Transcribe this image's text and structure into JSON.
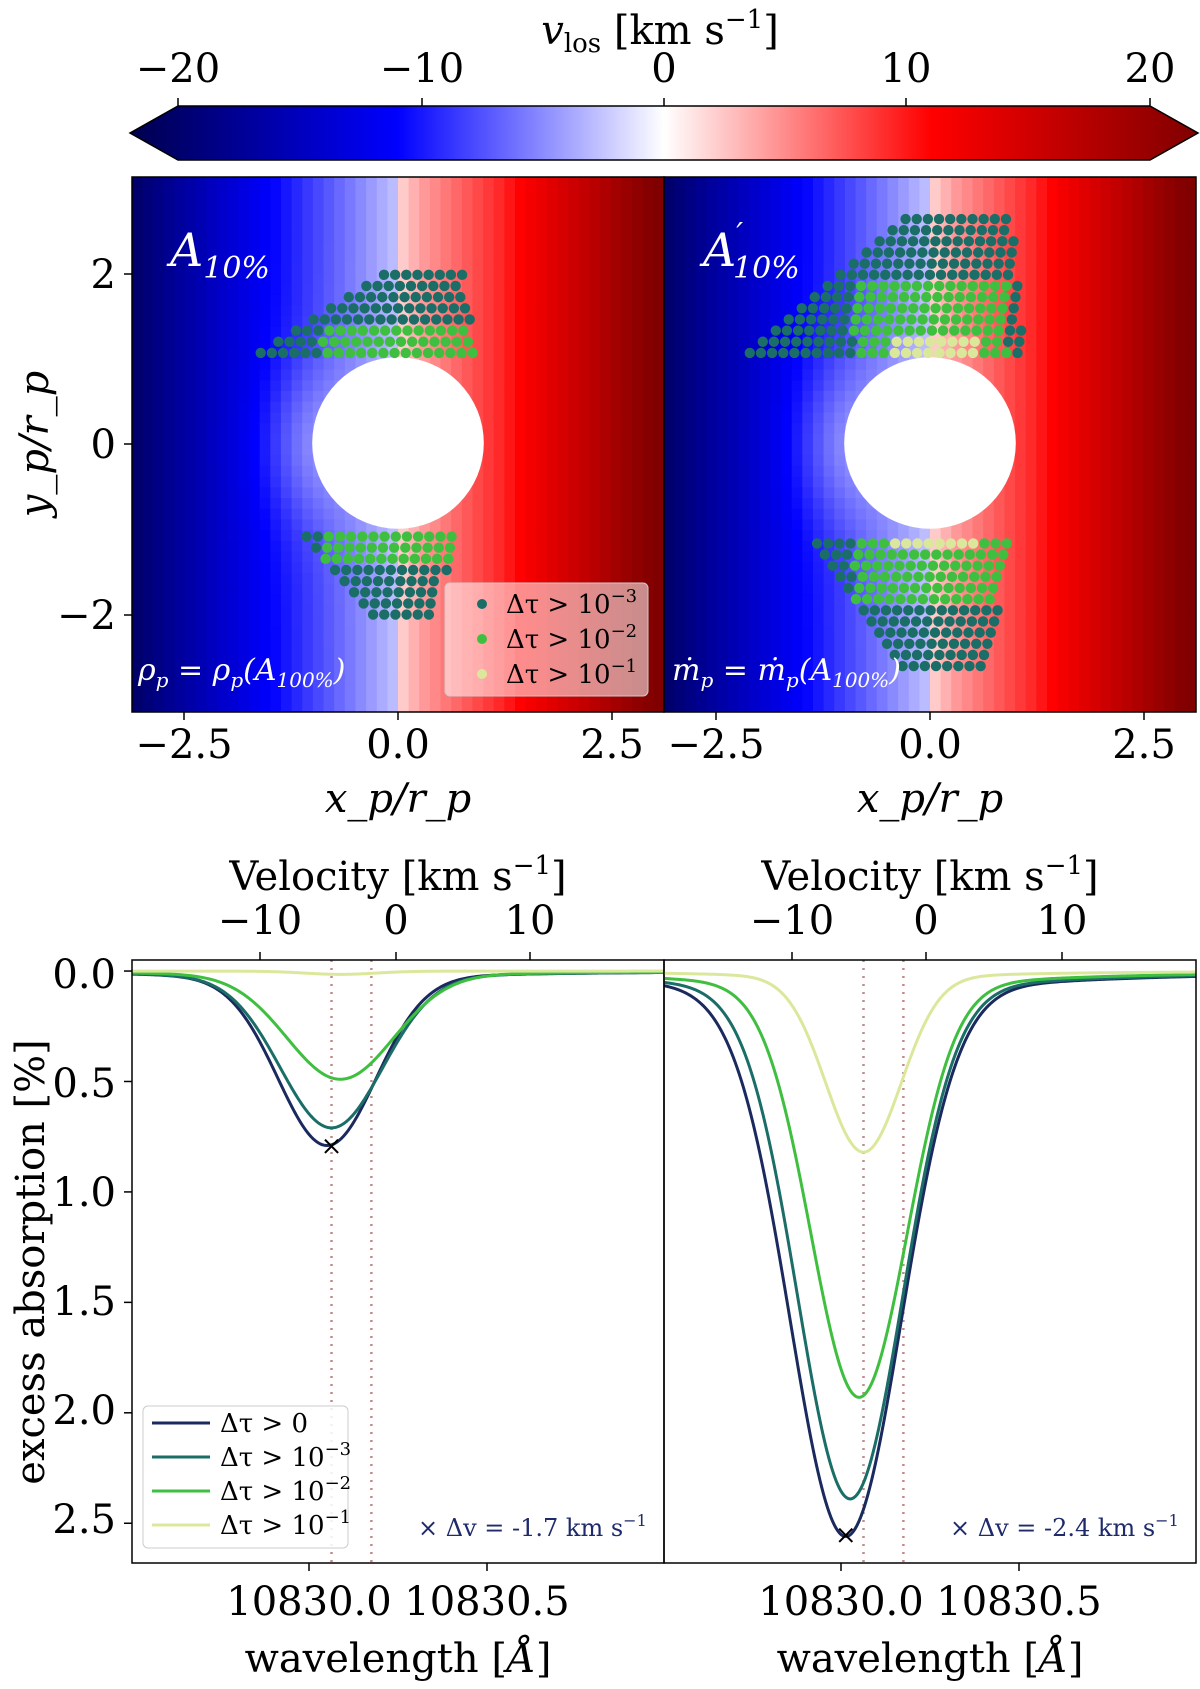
{
  "colorbar": {
    "label": "v_los [km s⁻¹]",
    "label_main": "v",
    "label_sub": "los",
    "label_unit": " [km s",
    "label_exp": "−1",
    "label_close": "]",
    "ticks": [
      "−20",
      "−10",
      "0",
      "10",
      "20"
    ],
    "range": [
      -20,
      20
    ],
    "colormap": "seismic",
    "colors": {
      "min": "#00004c",
      "mid": "#ffffff",
      "max": "#800000"
    }
  },
  "maps": {
    "xlabel": "x_p/r_p",
    "ylabel": "y_p/r_p",
    "x_ticks": [
      "−2.5",
      "0.0",
      "2.5"
    ],
    "y_ticks": [
      "2",
      "0",
      "−2"
    ],
    "xlim": [
      -3.1,
      3.1
    ],
    "ylim": [
      -3.1,
      3.1
    ],
    "panels": [
      {
        "tag_main": "A",
        "tag_sub": "10%",
        "tag_prime": "",
        "annotation": "ρ_p = ρ_p(A_100%)",
        "annotation_lhs": "ρ",
        "annotation_lhs_sub": "p",
        "annotation_mid": " = ρ",
        "annotation_mid_sub": "p",
        "annotation_rhs": "(A",
        "annotation_rhs_sub": "100%",
        "annotation_close": ")"
      },
      {
        "tag_main": "A",
        "tag_sub": "10%",
        "tag_prime": "′",
        "annotation": "ṁ_p = ṁ_p(A_100%)",
        "annotation_lhs": "ṁ",
        "annotation_lhs_sub": "p",
        "annotation_mid": " = ṁ",
        "annotation_mid_sub": "p",
        "annotation_rhs": "(A",
        "annotation_rhs_sub": "100%",
        "annotation_close": ")"
      }
    ],
    "legend": [
      {
        "label": "Δτ > 10⁻³",
        "base": "Δτ > 10",
        "exp": "−3",
        "color": "#1b6d67"
      },
      {
        "label": "Δτ > 10⁻²",
        "base": "Δτ > 10",
        "exp": "−2",
        "color": "#3fbf3f"
      },
      {
        "label": "Δτ > 10⁻¹",
        "base": "Δτ > 10",
        "exp": "−1",
        "color": "#dbe89c"
      }
    ]
  },
  "spectra": {
    "top_xlabel": "Velocity [km s⁻¹]",
    "top_xlabel_main": "Velocity [km s",
    "top_xlabel_exp": "−1",
    "top_xlabel_close": "]",
    "top_ticks": [
      "−10",
      "0",
      "10"
    ],
    "xlabel": "wavelength [Å]",
    "xlabel_main": "wavelength [",
    "xlabel_unit": "Å",
    "xlabel_close": "]",
    "x_ticks": [
      "10830.0",
      "10830.5"
    ],
    "ylabel": "excess absorption [%]",
    "y_ticks": [
      "0.0",
      "0.5",
      "1.0",
      "1.5",
      "2.0",
      "2.5"
    ],
    "xlim": [
      10829.75,
      10830.95
    ],
    "ylim": [
      2.68,
      -0.05
    ],
    "legend": [
      {
        "label": "Δτ > 0",
        "base": "Δτ > 0",
        "exp": "",
        "color": "#1b2a5e"
      },
      {
        "label": "Δτ > 10⁻³",
        "base": "Δτ > 10",
        "exp": "−3",
        "color": "#1b6d67"
      },
      {
        "label": "Δτ > 10⁻²",
        "base": "Δτ > 10",
        "exp": "−2",
        "color": "#3fbf3f"
      },
      {
        "label": "Δτ > 10⁻¹",
        "base": "Δτ > 10",
        "exp": "−1",
        "color": "#dbe89c"
      }
    ],
    "panels": [
      {
        "marker_text": "× Δv = -1.7 km s⁻¹",
        "marker_main": "×  Δv = -1.7 km s",
        "marker_exp": "−1"
      },
      {
        "marker_text": "× Δv = -2.4 km s⁻¹",
        "marker_main": "×  Δv = -2.4 km s",
        "marker_exp": "−1"
      }
    ]
  },
  "chart_data": [
    {
      "type": "heatmap",
      "panel": "A_10%",
      "quantity": "v_los [km s⁻¹]",
      "xlabel": "x_p/r_p",
      "ylabel": "y_p/r_p",
      "xlim": [
        -3.1,
        3.1
      ],
      "ylim": [
        -3.1,
        3.1
      ],
      "planet_radius": 1.0,
      "optical_depth_regions": {
        "upper": {
          "y_range": [
            1.05,
            2.0
          ],
          "x_range": [
            -1.6,
            0.9
          ]
        },
        "lower": {
          "y_range": [
            -2.0,
            -1.05
          ],
          "x_range": [
            -1.1,
            0.7
          ]
        }
      }
    },
    {
      "type": "heatmap",
      "panel": "A'_10%",
      "quantity": "v_los [km s⁻¹]",
      "xlabel": "x_p/r_p",
      "ylabel": "y_p/r_p",
      "xlim": [
        -3.1,
        3.1
      ],
      "ylim": [
        -3.1,
        3.1
      ],
      "planet_radius": 1.0,
      "optical_depth_regions": {
        "upper": {
          "y_range": [
            1.05,
            2.7
          ],
          "x_range": [
            -2.1,
            1.1
          ]
        },
        "lower": {
          "y_range": [
            -2.6,
            -1.05
          ],
          "x_range": [
            -1.4,
            1.0
          ]
        }
      }
    },
    {
      "type": "line",
      "panel": "spectrum A_10%",
      "xlabel": "wavelength [Å]",
      "ylabel": "excess absorption [%]",
      "xlim": [
        10829.75,
        10830.95
      ],
      "ylim": [
        2.68,
        -0.05
      ],
      "vertical_lines": [
        10830.2,
        10830.29
      ],
      "marker": {
        "x": 10830.2,
        "y": 0.79,
        "label": "Δv = -1.7 km s⁻¹"
      },
      "series": [
        {
          "name": "Δτ > 0",
          "color": "#1b2a5e",
          "center": 10830.19,
          "depth": 0.79,
          "width": 0.11
        },
        {
          "name": "Δτ > 10⁻³",
          "color": "#1b6d67",
          "center": 10830.2,
          "depth": 0.71,
          "width": 0.115
        },
        {
          "name": "Δτ > 10⁻²",
          "color": "#3fbf3f",
          "center": 10830.22,
          "depth": 0.49,
          "width": 0.12
        },
        {
          "name": "Δτ > 10⁻¹",
          "color": "#dbe89c",
          "center": 10830.22,
          "depth": 0.015,
          "width": 0.08
        }
      ]
    },
    {
      "type": "line",
      "panel": "spectrum A'_10%",
      "xlabel": "wavelength [Å]",
      "ylabel": "excess absorption [%]",
      "xlim": [
        10829.75,
        10830.95
      ],
      "ylim": [
        2.68,
        -0.05
      ],
      "vertical_lines": [
        10830.2,
        10830.29
      ],
      "marker": {
        "x": 10830.16,
        "y": 2.55,
        "label": "Δv = -2.4 km s⁻¹"
      },
      "series": [
        {
          "name": "Δτ > 0",
          "color": "#1b2a5e",
          "center": 10830.16,
          "depth": 2.56,
          "width": 0.125
        },
        {
          "name": "Δτ > 10⁻³",
          "color": "#1b6d67",
          "center": 10830.17,
          "depth": 2.39,
          "width": 0.118
        },
        {
          "name": "Δτ > 10⁻²",
          "color": "#3fbf3f",
          "center": 10830.19,
          "depth": 1.93,
          "width": 0.108
        },
        {
          "name": "Δτ > 10⁻¹",
          "color": "#dbe89c",
          "center": 10830.2,
          "depth": 0.82,
          "width": 0.085
        }
      ]
    }
  ]
}
